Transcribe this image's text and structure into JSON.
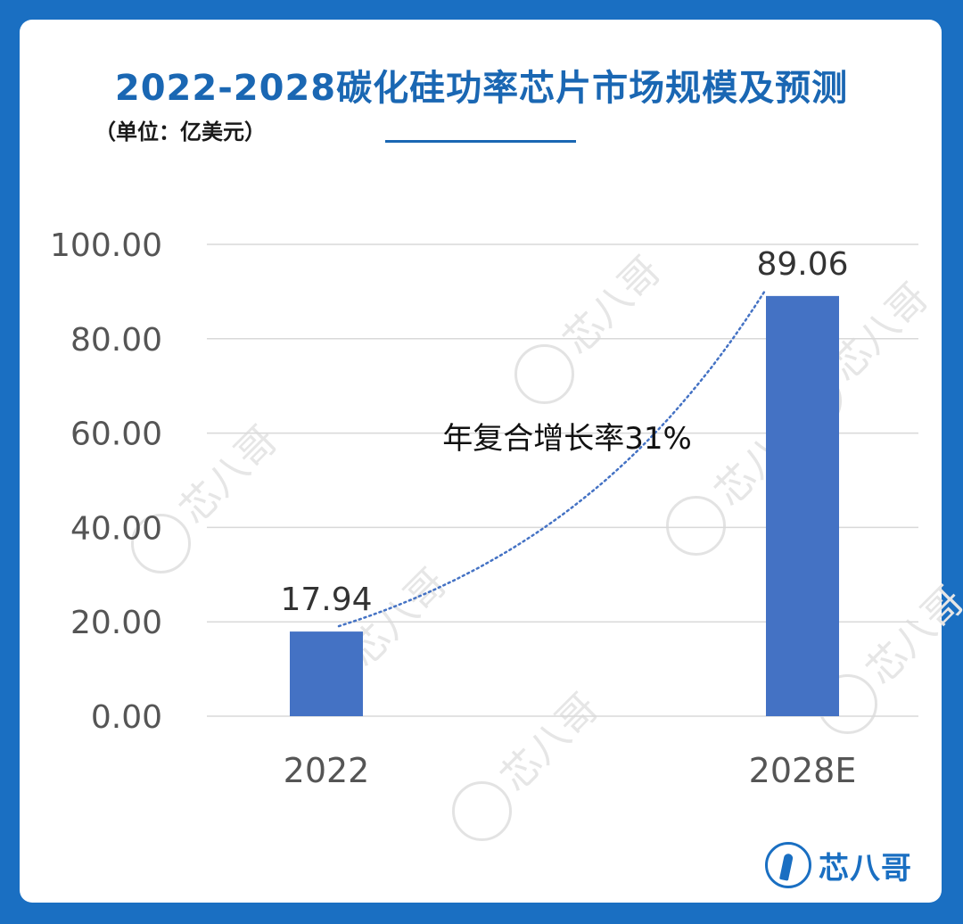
{
  "header": {
    "title": "2022-2028碳化硅功率芯片市场规模及预测",
    "unit": "（单位：亿美元）"
  },
  "brand": {
    "name": "芯八哥",
    "icon": "heron-logo-icon",
    "watermark": "芯八哥"
  },
  "colors": {
    "background": "#1a6fc2",
    "title": "#1a67b3",
    "bar": "#4472c4",
    "trend": "#4472c4"
  },
  "chart_data": {
    "type": "bar",
    "categories": [
      "2022",
      "2028E"
    ],
    "values": [
      17.94,
      89.06
    ],
    "data_labels": [
      "17.94",
      "89.06"
    ],
    "title": "2022-2028碳化硅功率芯片市场规模及预测",
    "xlabel": "",
    "ylabel": "",
    "ylim": [
      0,
      100
    ],
    "yticks": [
      "0.00",
      "20.00",
      "40.00",
      "60.00",
      "80.00",
      "100.00"
    ],
    "grid": true,
    "annotation": "年复合增长率31%",
    "trendline": "dotted-exponential"
  }
}
